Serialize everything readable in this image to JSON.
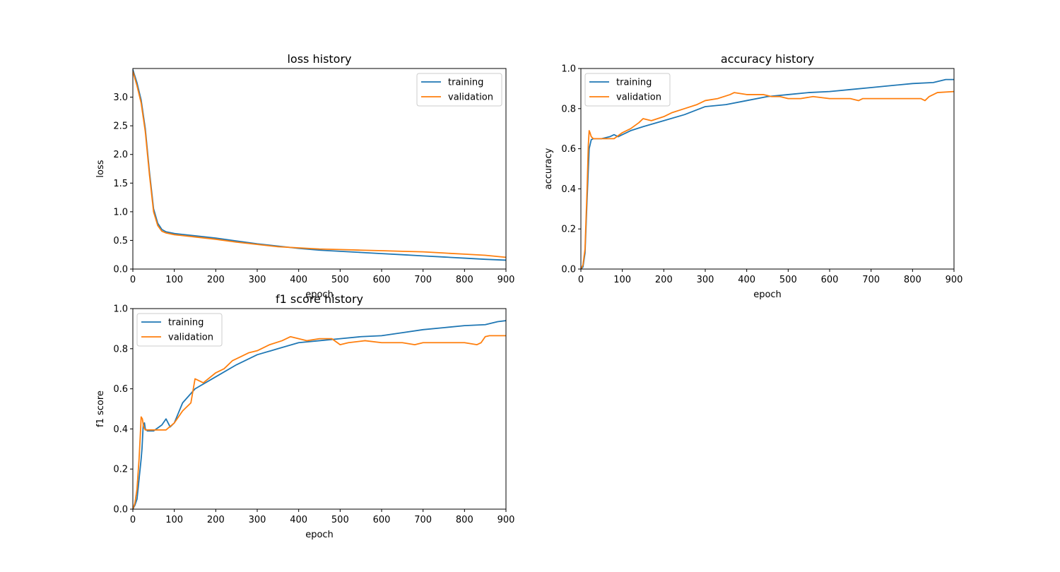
{
  "colors": {
    "training": "#1f77b4",
    "validation": "#ff7f0e"
  },
  "chart_data": [
    {
      "type": "line",
      "title": "loss history",
      "xlabel": "epoch",
      "ylabel": "loss",
      "xlim": [
        0,
        900
      ],
      "ylim": [
        0,
        3.5
      ],
      "xticks": [
        0,
        100,
        200,
        300,
        400,
        500,
        600,
        700,
        800,
        900
      ],
      "yticks": [
        0.0,
        0.5,
        1.0,
        1.5,
        2.0,
        2.5,
        3.0
      ],
      "legend": "upper-right",
      "series": [
        {
          "name": "training",
          "color": "#1f77b4",
          "x": [
            0,
            10,
            20,
            30,
            40,
            50,
            60,
            70,
            80,
            100,
            150,
            200,
            250,
            300,
            350,
            400,
            450,
            500,
            550,
            600,
            650,
            700,
            750,
            800,
            850,
            900
          ],
          "y": [
            3.48,
            3.25,
            2.95,
            2.45,
            1.7,
            1.05,
            0.8,
            0.69,
            0.65,
            0.62,
            0.58,
            0.54,
            0.49,
            0.44,
            0.4,
            0.36,
            0.33,
            0.31,
            0.29,
            0.27,
            0.25,
            0.23,
            0.21,
            0.19,
            0.17,
            0.155
          ]
        },
        {
          "name": "validation",
          "color": "#ff7f0e",
          "x": [
            0,
            10,
            20,
            30,
            40,
            50,
            60,
            70,
            80,
            100,
            150,
            200,
            250,
            300,
            350,
            400,
            450,
            500,
            550,
            600,
            650,
            700,
            750,
            800,
            850,
            900
          ],
          "y": [
            3.45,
            3.2,
            2.9,
            2.4,
            1.65,
            1.0,
            0.76,
            0.66,
            0.63,
            0.6,
            0.56,
            0.52,
            0.47,
            0.43,
            0.39,
            0.37,
            0.35,
            0.34,
            0.33,
            0.32,
            0.31,
            0.3,
            0.28,
            0.26,
            0.24,
            0.205
          ]
        }
      ]
    },
    {
      "type": "line",
      "title": "accuracy history",
      "xlabel": "epoch",
      "ylabel": "accuracy",
      "xlim": [
        0,
        900
      ],
      "ylim": [
        0,
        1.0
      ],
      "xticks": [
        0,
        100,
        200,
        300,
        400,
        500,
        600,
        700,
        800,
        900
      ],
      "yticks": [
        0.0,
        0.2,
        0.4,
        0.6,
        0.8,
        1.0
      ],
      "legend": "upper-left",
      "series": [
        {
          "name": "training",
          "color": "#1f77b4",
          "x": [
            0,
            5,
            10,
            15,
            20,
            25,
            30,
            50,
            70,
            80,
            90,
            100,
            120,
            150,
            200,
            250,
            300,
            350,
            400,
            450,
            500,
            550,
            600,
            650,
            700,
            750,
            800,
            850,
            880,
            900
          ],
          "y": [
            0.0,
            0.01,
            0.08,
            0.35,
            0.6,
            0.645,
            0.65,
            0.65,
            0.66,
            0.67,
            0.66,
            0.67,
            0.69,
            0.71,
            0.74,
            0.77,
            0.81,
            0.82,
            0.84,
            0.86,
            0.87,
            0.88,
            0.885,
            0.895,
            0.905,
            0.915,
            0.925,
            0.93,
            0.945,
            0.945
          ]
        },
        {
          "name": "validation",
          "color": "#ff7f0e",
          "x": [
            0,
            5,
            10,
            15,
            18,
            20,
            22,
            25,
            30,
            80,
            100,
            120,
            140,
            150,
            170,
            200,
            220,
            250,
            280,
            300,
            330,
            360,
            370,
            400,
            440,
            460,
            480,
            500,
            530,
            560,
            600,
            650,
            670,
            680,
            700,
            800,
            820,
            830,
            840,
            860,
            900
          ],
          "y": [
            0.0,
            0.02,
            0.1,
            0.4,
            0.62,
            0.69,
            0.68,
            0.66,
            0.65,
            0.65,
            0.68,
            0.7,
            0.73,
            0.75,
            0.74,
            0.76,
            0.78,
            0.8,
            0.82,
            0.84,
            0.85,
            0.87,
            0.88,
            0.87,
            0.87,
            0.86,
            0.86,
            0.85,
            0.85,
            0.86,
            0.85,
            0.85,
            0.84,
            0.85,
            0.85,
            0.85,
            0.85,
            0.84,
            0.86,
            0.88,
            0.885
          ]
        }
      ]
    },
    {
      "type": "line",
      "title": "f1 score history",
      "xlabel": "epoch",
      "ylabel": "f1 score",
      "xlim": [
        0,
        900
      ],
      "ylim": [
        0,
        1.0
      ],
      "xticks": [
        0,
        100,
        200,
        300,
        400,
        500,
        600,
        700,
        800,
        900
      ],
      "yticks": [
        0.0,
        0.2,
        0.4,
        0.6,
        0.8,
        1.0
      ],
      "legend": "upper-left",
      "series": [
        {
          "name": "training",
          "color": "#1f77b4",
          "x": [
            0,
            5,
            10,
            15,
            20,
            22,
            25,
            28,
            30,
            35,
            50,
            70,
            80,
            90,
            100,
            110,
            120,
            150,
            200,
            250,
            300,
            350,
            400,
            450,
            500,
            550,
            600,
            650,
            700,
            750,
            800,
            850,
            880,
            900
          ],
          "y": [
            0.0,
            0.02,
            0.05,
            0.15,
            0.25,
            0.3,
            0.42,
            0.43,
            0.4,
            0.39,
            0.39,
            0.42,
            0.45,
            0.41,
            0.43,
            0.48,
            0.53,
            0.6,
            0.66,
            0.72,
            0.77,
            0.8,
            0.83,
            0.84,
            0.85,
            0.86,
            0.865,
            0.88,
            0.895,
            0.905,
            0.915,
            0.92,
            0.935,
            0.94
          ]
        },
        {
          "name": "validation",
          "color": "#ff7f0e",
          "x": [
            0,
            5,
            10,
            15,
            18,
            20,
            23,
            26,
            30,
            80,
            100,
            120,
            140,
            150,
            170,
            200,
            220,
            240,
            260,
            280,
            300,
            330,
            360,
            380,
            420,
            450,
            480,
            500,
            520,
            560,
            600,
            650,
            680,
            700,
            800,
            830,
            840,
            850,
            860,
            900
          ],
          "y": [
            0.0,
            0.03,
            0.1,
            0.25,
            0.37,
            0.46,
            0.45,
            0.41,
            0.395,
            0.395,
            0.43,
            0.49,
            0.53,
            0.65,
            0.63,
            0.68,
            0.7,
            0.74,
            0.76,
            0.78,
            0.79,
            0.82,
            0.84,
            0.86,
            0.84,
            0.85,
            0.85,
            0.82,
            0.83,
            0.84,
            0.83,
            0.83,
            0.82,
            0.83,
            0.83,
            0.82,
            0.83,
            0.86,
            0.865,
            0.865
          ]
        }
      ]
    }
  ]
}
